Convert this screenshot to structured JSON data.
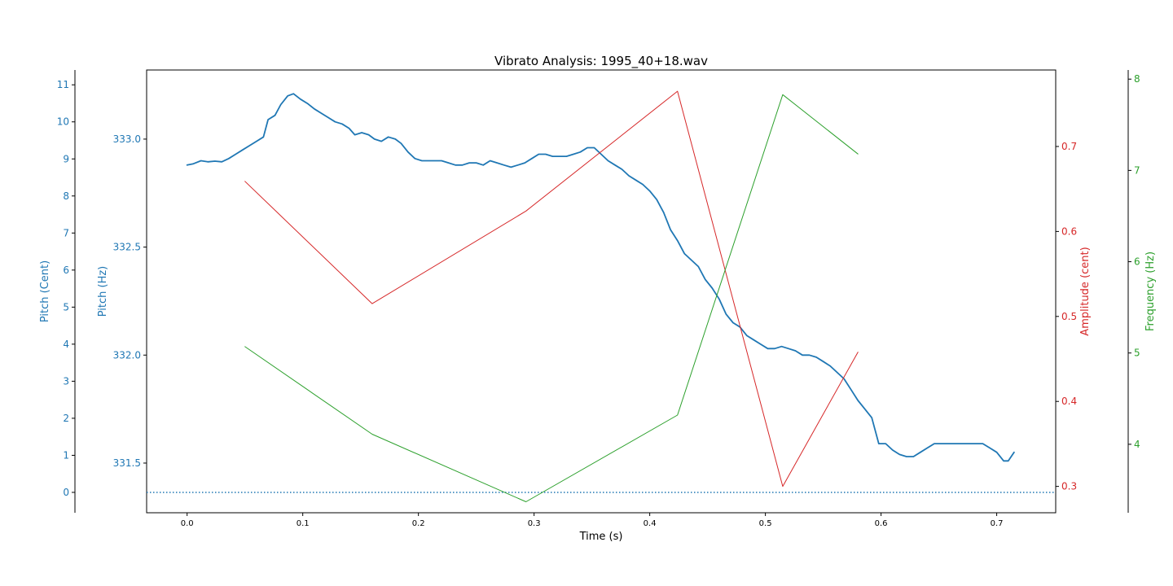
{
  "chart_data": {
    "type": "line",
    "title": "Vibrato Analysis: 1995_40+18.wav",
    "xlabel": "Time (s)",
    "xlim": [
      -0.035,
      0.751
    ],
    "xticks": [
      0.0,
      0.1,
      0.2,
      0.3,
      0.4,
      0.5,
      0.6,
      0.7
    ],
    "xtick_labels": [
      "0.0",
      "0.1",
      "0.2",
      "0.3",
      "0.4",
      "0.5",
      "0.6",
      "0.7"
    ],
    "grid": false,
    "axes": {
      "cent": {
        "label": "Pitch (Cent)",
        "color": "#1f77b4",
        "ylim": [
          -0.55,
          11.4
        ],
        "ticks": [
          0,
          1,
          2,
          3,
          4,
          5,
          6,
          7,
          8,
          9,
          10,
          11
        ],
        "tick_labels": [
          "0",
          "1",
          "2",
          "3",
          "4",
          "5",
          "6",
          "7",
          "8",
          "9",
          "10",
          "11"
        ]
      },
      "hz": {
        "label": "Pitch (Hz)",
        "color": "#1f77b4",
        "ylim": [
          331.27,
          333.32
        ],
        "ticks": [
          331.5,
          332.0,
          332.5,
          333.0
        ],
        "tick_labels": [
          "331.5",
          "332.0",
          "332.5",
          "333.0"
        ]
      },
      "amp": {
        "label": "Amplitude (cent)",
        "color": "#d62728",
        "ylim": [
          0.269,
          0.79
        ],
        "ticks": [
          0.3,
          0.4,
          0.5,
          0.6,
          0.7
        ],
        "tick_labels": [
          "0.3",
          "0.4",
          "0.5",
          "0.6",
          "0.7"
        ]
      },
      "freq": {
        "label": "Frequency (Hz)",
        "color": "#2ca02c",
        "ylim": [
          3.25,
          8.1
        ],
        "ticks": [
          4,
          5,
          6,
          7,
          8
        ],
        "tick_labels": [
          "4",
          "5",
          "6",
          "7",
          "8"
        ]
      }
    },
    "series": [
      {
        "axis": "hz",
        "color": "#1f77b4",
        "style": "solid",
        "x": [
          0.0,
          0.005,
          0.012,
          0.018,
          0.024,
          0.03,
          0.036,
          0.042,
          0.048,
          0.054,
          0.06,
          0.066,
          0.07,
          0.076,
          0.081,
          0.087,
          0.092,
          0.098,
          0.104,
          0.11,
          0.116,
          0.122,
          0.128,
          0.134,
          0.14,
          0.145,
          0.151,
          0.157,
          0.162,
          0.168,
          0.174,
          0.18,
          0.185,
          0.191,
          0.197,
          0.203,
          0.209,
          0.215,
          0.22,
          0.226,
          0.232,
          0.238,
          0.244,
          0.25,
          0.256,
          0.262,
          0.268,
          0.274,
          0.28,
          0.286,
          0.292,
          0.298,
          0.304,
          0.31,
          0.316,
          0.322,
          0.328,
          0.334,
          0.34,
          0.346,
          0.352,
          0.358,
          0.364,
          0.37,
          0.376,
          0.382,
          0.388,
          0.394,
          0.4,
          0.406,
          0.412,
          0.418,
          0.424,
          0.43,
          0.436,
          0.442,
          0.448,
          0.454,
          0.46,
          0.466,
          0.472,
          0.478,
          0.484,
          0.49,
          0.496,
          0.502,
          0.508,
          0.514,
          0.52,
          0.526,
          0.532,
          0.538,
          0.544,
          0.55,
          0.556,
          0.562,
          0.568,
          0.574,
          0.58,
          0.586,
          0.592,
          0.598,
          0.604,
          0.61,
          0.616,
          0.622,
          0.628,
          0.634,
          0.64,
          0.646,
          0.652,
          0.658,
          0.664,
          0.67,
          0.676,
          0.682,
          0.688,
          0.694,
          0.7,
          0.706,
          0.71,
          0.715
        ],
        "y": [
          332.88,
          332.885,
          332.9,
          332.895,
          332.898,
          332.895,
          332.91,
          332.93,
          332.95,
          332.97,
          332.99,
          333.01,
          333.09,
          333.11,
          333.16,
          333.2,
          333.21,
          333.185,
          333.165,
          333.14,
          333.12,
          333.1,
          333.08,
          333.07,
          333.05,
          333.02,
          333.03,
          333.02,
          333.0,
          332.99,
          333.01,
          333.0,
          332.98,
          332.94,
          332.91,
          332.9,
          332.9,
          332.9,
          332.9,
          332.89,
          332.88,
          332.88,
          332.89,
          332.89,
          332.88,
          332.9,
          332.89,
          332.88,
          332.87,
          332.88,
          332.89,
          332.91,
          332.93,
          332.93,
          332.92,
          332.92,
          332.92,
          332.93,
          332.94,
          332.96,
          332.96,
          332.93,
          332.9,
          332.88,
          332.86,
          332.83,
          332.81,
          332.79,
          332.76,
          332.72,
          332.66,
          332.58,
          332.53,
          332.47,
          332.44,
          332.41,
          332.35,
          332.31,
          332.26,
          332.19,
          332.15,
          332.13,
          332.09,
          332.07,
          332.05,
          332.03,
          332.03,
          332.04,
          332.03,
          332.02,
          332.0,
          332.0,
          331.99,
          331.97,
          331.95,
          331.92,
          331.89,
          331.84,
          331.79,
          331.75,
          331.71,
          331.59,
          331.59,
          331.56,
          331.54,
          331.53,
          331.53,
          331.55,
          331.57,
          331.59,
          331.59,
          331.59,
          331.59,
          331.59,
          331.59,
          331.59,
          331.59,
          331.57,
          331.55,
          331.51,
          331.51,
          331.55
        ]
      },
      {
        "axis": "cent",
        "color": "#1f77b4",
        "style": "dotted",
        "x": [
          -0.035,
          0.751
        ],
        "y": [
          0,
          0
        ]
      },
      {
        "axis": "amp",
        "color": "#d62728",
        "style": "solid",
        "x": [
          0.05,
          0.16,
          0.293,
          0.424,
          0.515,
          0.58
        ],
        "y": [
          0.659,
          0.515,
          0.624,
          0.765,
          0.3,
          0.458
        ]
      },
      {
        "axis": "freq",
        "color": "#2ca02c",
        "style": "solid",
        "x": [
          0.05,
          0.16,
          0.293,
          0.424,
          0.515,
          0.58
        ],
        "y": [
          5.07,
          4.11,
          3.37,
          4.32,
          7.83,
          7.18
        ]
      }
    ]
  }
}
